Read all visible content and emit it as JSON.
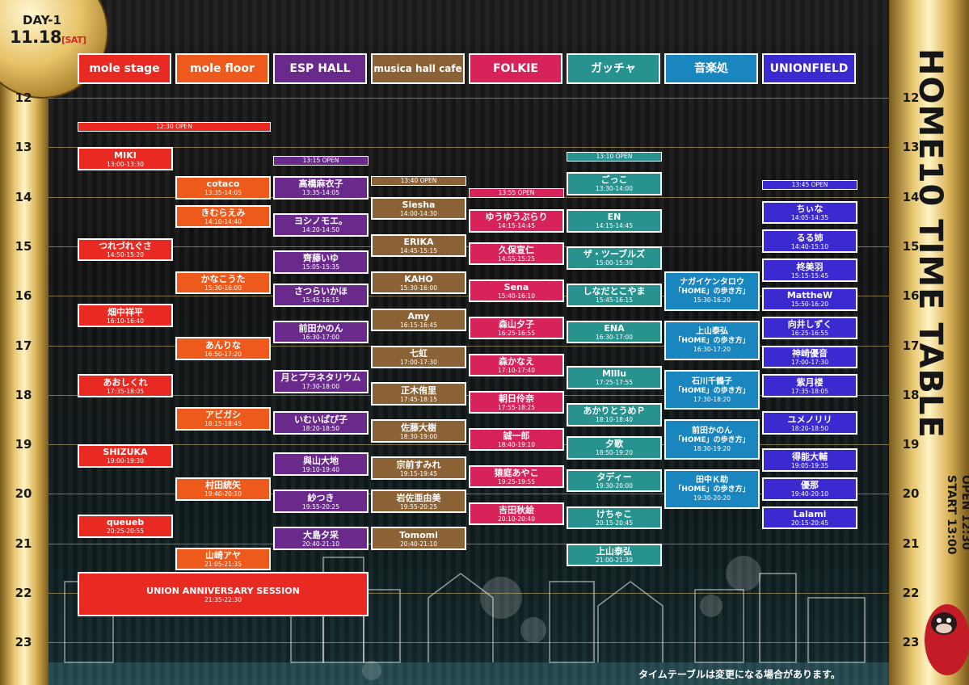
{
  "badge": {
    "day": "DAY-1",
    "date": "11.18",
    "dow": "[SAT]"
  },
  "title": {
    "main": "HOME10 TIME TABLE",
    "open": "OPEN 12:30",
    "start": "START 13:00"
  },
  "notice": "タイムテーブルは変更になる場合があります。",
  "hours": [
    "12",
    "13",
    "14",
    "15",
    "16",
    "17",
    "18",
    "19",
    "20",
    "21",
    "22",
    "23"
  ],
  "colors": {
    "mole_stage": "#e82a22",
    "mole_floor": "#ee5a1c",
    "esp_hall": "#6a2a8c",
    "musica": "#8a6236",
    "folkie": "#d8225a",
    "gatcha": "#27928e",
    "ongakudokoro": "#1a86c0",
    "unionfield": "#3a2ad0"
  },
  "stages": [
    {
      "key": "mole_stage",
      "name": "mole stage"
    },
    {
      "key": "mole_floor",
      "name": "mole floor"
    },
    {
      "key": "esp_hall",
      "name": "ESP HALL"
    },
    {
      "key": "musica",
      "name": "musica hall cafe"
    },
    {
      "key": "folkie",
      "name": "FOLKIE"
    },
    {
      "key": "gatcha",
      "name": "ガッチャ"
    },
    {
      "key": "ongakudokoro",
      "name": "音楽処"
    },
    {
      "key": "unionfield",
      "name": "UNIONFIELD"
    }
  ],
  "opens": [
    {
      "stage": 0,
      "span": 2,
      "text": "12:30 OPEN",
      "at": "12:30"
    },
    {
      "stage": 2,
      "span": 1,
      "text": "13:15 OPEN",
      "at": "13:15"
    },
    {
      "stage": 3,
      "span": 1,
      "text": "13:40 OPEN",
      "at": "13:40"
    },
    {
      "stage": 4,
      "span": 1,
      "text": "13:55 OPEN",
      "at": "13:55"
    },
    {
      "stage": 5,
      "span": 1,
      "text": "13:10 OPEN",
      "at": "13:10"
    },
    {
      "stage": 7,
      "span": 1,
      "text": "13:45 OPEN",
      "at": "13:45"
    }
  ],
  "acts": [
    {
      "stage": 0,
      "name": "MIKI",
      "time": "13:00-13:30"
    },
    {
      "stage": 0,
      "name": "つれづれぐさ",
      "time": "14:50-15:20"
    },
    {
      "stage": 0,
      "name": "畑中祥平",
      "time": "16:10-16:40"
    },
    {
      "stage": 0,
      "name": "あおしくれ",
      "time": "17:35-18:05"
    },
    {
      "stage": 0,
      "name": "SHIZUKA",
      "time": "19:00-19:30"
    },
    {
      "stage": 0,
      "name": "queueb",
      "time": "20:25-20:55"
    },
    {
      "stage": 0,
      "name": "UNION ANNIVERSARY SESSION",
      "time": "21:35-22:30",
      "wide": true
    },
    {
      "stage": 1,
      "name": "cotaco",
      "time": "13:35-14:05"
    },
    {
      "stage": 1,
      "name": "きむらえみ",
      "time": "14:10-14:40"
    },
    {
      "stage": 1,
      "name": "かなこうた",
      "time": "15:30-16:00"
    },
    {
      "stage": 1,
      "name": "あんりな",
      "time": "16:50-17:20"
    },
    {
      "stage": 1,
      "name": "アビガシ",
      "time": "18:15-18:45"
    },
    {
      "stage": 1,
      "name": "村田統矢",
      "time": "19:40-20:10"
    },
    {
      "stage": 1,
      "name": "山崎アヤ",
      "time": "21:05-21:35"
    },
    {
      "stage": 2,
      "name": "高橋麻衣子",
      "time": "13:35-14:05"
    },
    {
      "stage": 2,
      "name": "ヨシノモエ。",
      "time": "14:20-14:50"
    },
    {
      "stage": 2,
      "name": "齊藤いゆ",
      "time": "15:05-15:35"
    },
    {
      "stage": 2,
      "name": "さつらいかほ",
      "time": "15:45-16:15"
    },
    {
      "stage": 2,
      "name": "前田かのん",
      "time": "16:30-17:00"
    },
    {
      "stage": 2,
      "name": "月とプラネタリウム",
      "time": "17:30-18:00"
    },
    {
      "stage": 2,
      "name": "いむいぱぴ子",
      "time": "18:20-18:50"
    },
    {
      "stage": 2,
      "name": "與山大地",
      "time": "19:10-19:40"
    },
    {
      "stage": 2,
      "name": "紗つき",
      "time": "19:55-20:25"
    },
    {
      "stage": 2,
      "name": "大島夕采",
      "time": "20:40-21:10"
    },
    {
      "stage": 3,
      "name": "Siesha",
      "time": "14:00-14:30"
    },
    {
      "stage": 3,
      "name": "ERIKA",
      "time": "14:45-15:15"
    },
    {
      "stage": 3,
      "name": "KAHO",
      "time": "15:30-16:00"
    },
    {
      "stage": 3,
      "name": "Amy",
      "time": "16:15-16:45"
    },
    {
      "stage": 3,
      "name": "七虹",
      "time": "17:00-17:30"
    },
    {
      "stage": 3,
      "name": "正木侑里",
      "time": "17:45-18:15"
    },
    {
      "stage": 3,
      "name": "佐藤大樹",
      "time": "18:30-19:00"
    },
    {
      "stage": 3,
      "name": "宗前すみれ",
      "time": "19:15-19:45"
    },
    {
      "stage": 3,
      "name": "岩佐亜由美",
      "time": "19:55-20:25"
    },
    {
      "stage": 3,
      "name": "Tomomi",
      "time": "20:40-21:10"
    },
    {
      "stage": 4,
      "name": "ゆうゆうぶらり",
      "time": "14:15-14:45"
    },
    {
      "stage": 4,
      "name": "久保宣仁",
      "time": "14:55-15:25"
    },
    {
      "stage": 4,
      "name": "Sena",
      "time": "15:40-16:10"
    },
    {
      "stage": 4,
      "name": "森山夕子",
      "time": "16:25-16:55"
    },
    {
      "stage": 4,
      "name": "森かなえ",
      "time": "17:10-17:40"
    },
    {
      "stage": 4,
      "name": "朝日伶奈",
      "time": "17:55-18:25"
    },
    {
      "stage": 4,
      "name": "誠一郎",
      "time": "18:40-19:10"
    },
    {
      "stage": 4,
      "name": "猿庭あやこ",
      "time": "19:25-19:55"
    },
    {
      "stage": 4,
      "name": "吉田秋絵",
      "time": "20:10-20:40"
    },
    {
      "stage": 5,
      "name": "ごっこ",
      "time": "13:30-14:00"
    },
    {
      "stage": 5,
      "name": "EN",
      "time": "14:15-14:45"
    },
    {
      "stage": 5,
      "name": "ザ・ツーブルズ",
      "time": "15:00-15:30"
    },
    {
      "stage": 5,
      "name": "しなだとこやま",
      "time": "15:45-16:15"
    },
    {
      "stage": 5,
      "name": "ENA",
      "time": "16:30-17:00"
    },
    {
      "stage": 5,
      "name": "Mlllu",
      "time": "17:25-17:55"
    },
    {
      "stage": 5,
      "name": "あかりとうめＰ",
      "time": "18:10-18:40"
    },
    {
      "stage": 5,
      "name": "夕歌",
      "time": "18:50-19:20"
    },
    {
      "stage": 5,
      "name": "タディー",
      "time": "19:30-20:00"
    },
    {
      "stage": 5,
      "name": "けちゃこ",
      "time": "20:15-20:45"
    },
    {
      "stage": 5,
      "name": "上山泰弘",
      "time": "21:00-21:30"
    },
    {
      "stage": 6,
      "name": "ナガイケンタロウ",
      "sub": "「HOME」の歩き方」",
      "time": "15:30-16:20",
      "special": true
    },
    {
      "stage": 6,
      "name": "上山泰弘",
      "sub": "「HOME」の歩き方」",
      "time": "16:30-17:20",
      "special": true
    },
    {
      "stage": 6,
      "name": "石川千鶴子",
      "sub": "「HOME」の歩き方」",
      "time": "17:30-18:20",
      "special": true
    },
    {
      "stage": 6,
      "name": "前田かのん",
      "sub": "「HOME」の歩き方」",
      "time": "18:30-19:20",
      "special": true
    },
    {
      "stage": 6,
      "name": "田中Ｋ助",
      "sub": "「HOME」の歩き方」",
      "time": "19:30-20:20",
      "special": true
    },
    {
      "stage": 7,
      "name": "ちぃな",
      "time": "14:05-14:35"
    },
    {
      "stage": 7,
      "name": "るる姉",
      "time": "14:40-15:10"
    },
    {
      "stage": 7,
      "name": "柊美羽",
      "time": "15:15-15:45"
    },
    {
      "stage": 7,
      "name": "MattheW",
      "time": "15:50-16:20"
    },
    {
      "stage": 7,
      "name": "向井しずく",
      "time": "16:25-16:55"
    },
    {
      "stage": 7,
      "name": "神崎優音",
      "time": "17:00-17:30"
    },
    {
      "stage": 7,
      "name": "紫月楼",
      "time": "17:35-18:05"
    },
    {
      "stage": 7,
      "name": "ユメノリリ",
      "time": "18:20-18:50"
    },
    {
      "stage": 7,
      "name": "得能大輔",
      "time": "19:05-19:35"
    },
    {
      "stage": 7,
      "name": "優那",
      "time": "19:40-20:10"
    },
    {
      "stage": 7,
      "name": "Lalami",
      "time": "20:15-20:45"
    }
  ]
}
